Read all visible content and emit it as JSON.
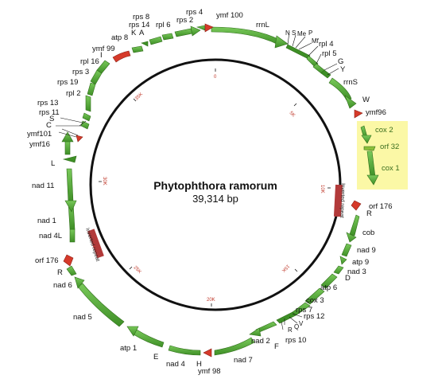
{
  "title": "Phytophthora ramorum",
  "subtitle": "39,314 bp",
  "ring_ticks": [
    "0",
    "5K",
    "10K",
    "15K",
    "20K",
    "25K",
    "30K",
    "35K"
  ],
  "repeats": {
    "right": "Inverted repeat",
    "left": "Inverted repeat"
  },
  "colors": {
    "gene": "#5aaf3c",
    "gene_stroke": "#2f6e1a",
    "orf": "#d63a2a",
    "repeat": "#b23a3a",
    "highlight": "#fbf8a6"
  },
  "labels": {
    "ymf100": "ymf 100",
    "rps4": "rps 4",
    "rps2": "rps 2",
    "rps8": "rps 8",
    "rps14": "rps 14",
    "rpl6": "rpl 6",
    "K": "K",
    "A": "A",
    "atp8": "atp 8",
    "ymf99": "ymf 99",
    "I": "I",
    "rpl16": "rpl 16",
    "rps3": "rps 3",
    "rps19": "rps 19",
    "rpl2": "rpl 2",
    "rps13": "rps 13",
    "rps11": "rps 11",
    "S_left": "S",
    "C": "C",
    "ymf101": "ymf101",
    "ymf16": "ymf16",
    "L": "L",
    "nad11": "nad 11",
    "nad1": "nad 1",
    "nad4L": "nad 4L",
    "orf176_left": "orf 176",
    "R_left": "R",
    "nad6": "nad 6",
    "nad5": "nad 5",
    "atp1": "atp 1",
    "E": "E",
    "nad4": "nad 4",
    "H": "H",
    "ymf98": "ymf 98",
    "nad7": "nad 7",
    "nad2": "nad 2",
    "F": "F",
    "rps10": "rps 10",
    "R_mid": "R",
    "Q": "Q",
    "V": "V",
    "rps12": "rps 12",
    "rps7": "rps 7",
    "cox3": "cox 3",
    "atp6": "atp 6",
    "D": "D",
    "nad3": "nad 3",
    "atp9": "atp 9",
    "nad9": "nad 9",
    "cob": "cob",
    "R_right": "R",
    "orf176_right": "orf 176",
    "cox1": "cox 1",
    "orf32": "orf 32",
    "cox2": "cox 2",
    "ymf96": "ymf96",
    "W": "W",
    "rrnS": "rrnS",
    "Y": "Y",
    "G": "G",
    "rpl5": "rpl 5",
    "rpl4": "rpl 4",
    "Mf": "Mf",
    "P": "P",
    "Me": "Me",
    "S_right": "S",
    "N": "N",
    "rrnL": "rrnL"
  }
}
